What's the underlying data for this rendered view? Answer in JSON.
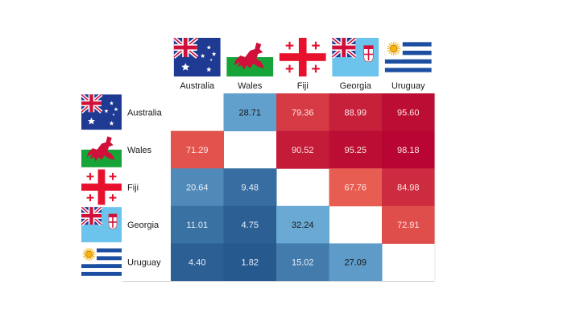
{
  "chart_data": {
    "type": "heatmap",
    "rows": [
      "Australia",
      "Wales",
      "Fiji",
      "Georgia",
      "Uruguay"
    ],
    "columns": [
      "Australia",
      "Wales",
      "Fiji",
      "Georgia",
      "Uruguay"
    ],
    "values": [
      [
        null,
        28.71,
        79.36,
        88.99,
        95.6
      ],
      [
        71.29,
        null,
        90.52,
        95.25,
        98.18
      ],
      [
        20.64,
        9.48,
        null,
        67.76,
        84.98
      ],
      [
        11.01,
        4.75,
        32.24,
        null,
        72.91
      ],
      [
        4.4,
        1.82,
        15.02,
        27.09,
        null
      ]
    ],
    "value_labels": [
      [
        "",
        "28.71",
        "79.36",
        "88.99",
        "95.60"
      ],
      [
        "71.29",
        "",
        "90.52",
        "95.25",
        "98.18"
      ],
      [
        "20.64",
        "9.48",
        "",
        "67.76",
        "84.98"
      ],
      [
        "11.01",
        "4.75",
        "32.24",
        "",
        "72.91"
      ],
      [
        "4.40",
        "1.82",
        "15.02",
        "27.09",
        ""
      ]
    ],
    "colormap": {
      "low": "#22548a",
      "mid_low": "#6fb0da",
      "mid_high": "#f4735a",
      "high": "#b5002f"
    },
    "flags": {
      "Australia": "australia-flag-icon",
      "Wales": "wales-flag-icon",
      "Fiji": "fiji-flag-icon",
      "Georgia": "georgia-flag-icon",
      "Uruguay": "uruguay-flag-icon"
    },
    "title": "",
    "xlabel": "",
    "ylabel": ""
  }
}
